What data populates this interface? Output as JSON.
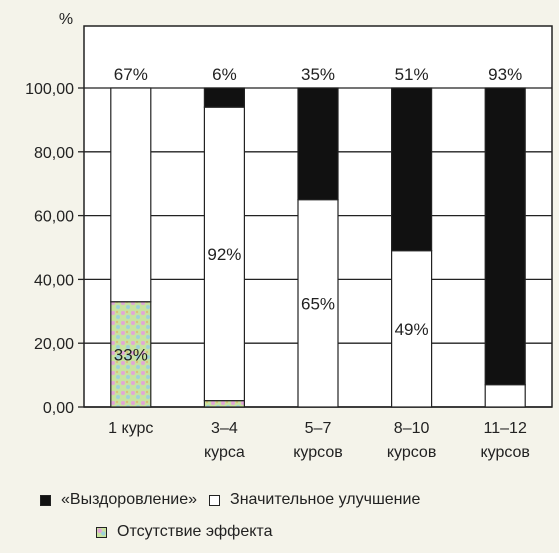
{
  "chart_data": {
    "type": "bar",
    "stacked": true,
    "y_unit_label": "%",
    "ylim": [
      0,
      100
    ],
    "yticks": [
      "0,00",
      "20,00",
      "40,00",
      "60,00",
      "80,00",
      "100,00"
    ],
    "categories": [
      [
        "1 курс"
      ],
      [
        "3–4",
        "курса"
      ],
      [
        "5–7",
        "курсов"
      ],
      [
        "8–10",
        "курсов"
      ],
      [
        "11–12",
        "курсов"
      ]
    ],
    "series": [
      {
        "name": "Отсутствие эффекта",
        "color": "#c9e3a0",
        "values": [
          33,
          2,
          0,
          0,
          0
        ],
        "labels": [
          "33%",
          "",
          "",
          "",
          ""
        ]
      },
      {
        "name": "Значительное улучшение",
        "color": "#ffffff",
        "values": [
          67,
          92,
          65,
          49,
          7
        ],
        "labels": [
          "",
          "92%",
          "65%",
          "49%",
          ""
        ]
      },
      {
        "name": "«Выздоровление»",
        "color": "#111111",
        "values": [
          0,
          6,
          35,
          51,
          93
        ],
        "labels": [
          "",
          "",
          "",
          "",
          ""
        ]
      }
    ],
    "top_labels": [
      "67%",
      "6%",
      "35%",
      "51%",
      "93%"
    ],
    "grid": true,
    "legend_position": "bottom"
  }
}
